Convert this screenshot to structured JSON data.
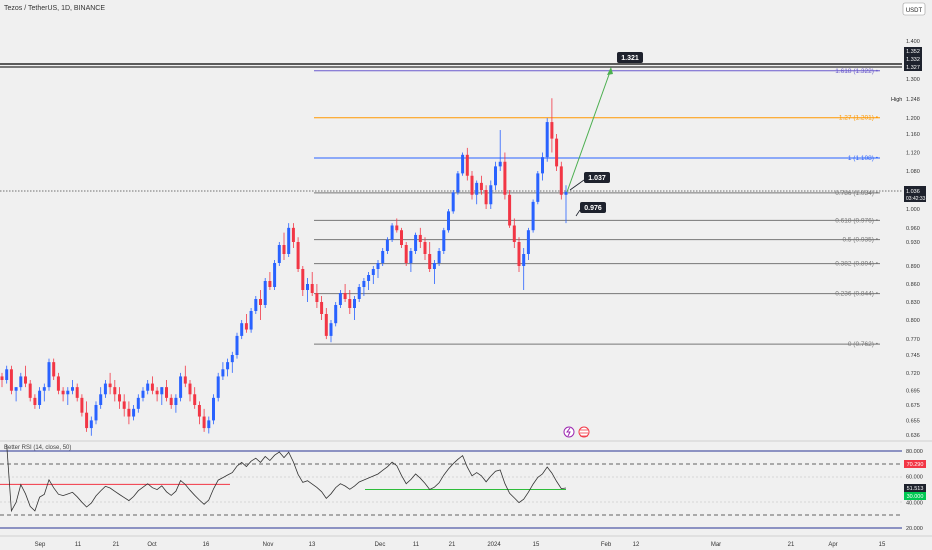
{
  "header": {
    "title": "Tezos / TetherUS, 1D, BINANCE",
    "currency": "USDT"
  },
  "colors": {
    "up": "#2962ff",
    "down": "#f23645",
    "fib": "#777777",
    "fib1": "#2962ff",
    "fib127": "#ff9800",
    "fib1618": "#6a5acd",
    "arrow": "#4caf50",
    "rsi": "#333333",
    "rsi_ob": "#f23645",
    "rsi_os": "#2ebd3a",
    "label_bg": "#1e222d"
  },
  "price_axis": {
    "ticks": [
      "1.400",
      "1.300",
      "1.248",
      "1.200",
      "1.160",
      "1.120",
      "1.080",
      "1.000",
      "0.960",
      "0.930",
      "0.890",
      "0.860",
      "0.830",
      "0.800",
      "0.770",
      "0.745",
      "0.720",
      "0.695",
      "0.675",
      "0.655",
      "0.636"
    ],
    "last_price": "1.036",
    "countdown": "03:42:33",
    "boxes": [
      "1.352",
      "1.332",
      "1.327"
    ],
    "high_label": "High"
  },
  "fib_levels": [
    {
      "label": "1.618 (1.322)",
      "price": 1.322,
      "kind": "fib1618"
    },
    {
      "label": "1.27 (1.201)",
      "price": 1.201,
      "kind": "fib127"
    },
    {
      "label": "1 (1.108)",
      "price": 1.108,
      "kind": "fib1"
    },
    {
      "label": "0.786 (1.034)",
      "price": 1.034,
      "kind": "fib"
    },
    {
      "label": "0.618 (0.976)",
      "price": 0.976,
      "kind": "fib"
    },
    {
      "label": "0.5 (0.935)",
      "price": 0.935,
      "kind": "fib"
    },
    {
      "label": "0.382 (0.894)",
      "price": 0.894,
      "kind": "fib"
    },
    {
      "label": "0.236 (0.844)",
      "price": 0.844,
      "kind": "fib"
    },
    {
      "label": "0 (0.762)",
      "price": 0.762,
      "kind": "fib"
    }
  ],
  "callouts": [
    {
      "text": "1.321"
    },
    {
      "text": "1.037"
    },
    {
      "text": "0.976"
    }
  ],
  "rsi": {
    "title": "Better RSI (14, close, 50)",
    "ticks": [
      "80.000",
      "60.000",
      "40.000",
      "20.000"
    ],
    "value_box": "70.290",
    "value2": "51.513",
    "value3": "30.000"
  },
  "x_axis": [
    "Sep",
    "11",
    "21",
    "Oct",
    "16",
    "Nov",
    "13",
    "Dec",
    "11",
    "21",
    "2024",
    "15",
    "Feb",
    "12",
    "Mar",
    "21",
    "Apr",
    "15"
  ],
  "chart_data": {
    "type": "candlestick",
    "title": "Tezos / TetherUS, 1D, BINANCE",
    "ylabel": "USDT",
    "ylim": [
      0.63,
      1.4
    ],
    "fib_retracement": {
      "from_low": 0.762,
      "to_high": 1.108
    },
    "target_price": 1.321,
    "candles_approx": [
      [
        0.715,
        0.72,
        0.7,
        0.71
      ],
      [
        0.71,
        0.73,
        0.705,
        0.725
      ],
      [
        0.725,
        0.73,
        0.69,
        0.695
      ],
      [
        0.695,
        0.7,
        0.68,
        0.7
      ],
      [
        0.7,
        0.72,
        0.695,
        0.715
      ],
      [
        0.715,
        0.73,
        0.7,
        0.705
      ],
      [
        0.705,
        0.71,
        0.68,
        0.685
      ],
      [
        0.685,
        0.69,
        0.67,
        0.675
      ],
      [
        0.675,
        0.7,
        0.67,
        0.695
      ],
      [
        0.695,
        0.705,
        0.68,
        0.7
      ],
      [
        0.7,
        0.74,
        0.695,
        0.735
      ],
      [
        0.735,
        0.74,
        0.71,
        0.715
      ],
      [
        0.715,
        0.72,
        0.69,
        0.695
      ],
      [
        0.695,
        0.7,
        0.68,
        0.69
      ],
      [
        0.69,
        0.7,
        0.675,
        0.695
      ],
      [
        0.695,
        0.71,
        0.69,
        0.7
      ],
      [
        0.7,
        0.705,
        0.68,
        0.685
      ],
      [
        0.685,
        0.69,
        0.66,
        0.665
      ],
      [
        0.665,
        0.68,
        0.64,
        0.645
      ],
      [
        0.645,
        0.66,
        0.635,
        0.655
      ],
      [
        0.655,
        0.68,
        0.65,
        0.675
      ],
      [
        0.675,
        0.7,
        0.67,
        0.69
      ],
      [
        0.69,
        0.71,
        0.685,
        0.705
      ],
      [
        0.705,
        0.72,
        0.69,
        0.7
      ],
      [
        0.7,
        0.71,
        0.68,
        0.69
      ],
      [
        0.69,
        0.7,
        0.67,
        0.68
      ],
      [
        0.68,
        0.69,
        0.66,
        0.67
      ],
      [
        0.67,
        0.68,
        0.65,
        0.66
      ],
      [
        0.66,
        0.675,
        0.655,
        0.67
      ],
      [
        0.67,
        0.69,
        0.665,
        0.685
      ],
      [
        0.685,
        0.7,
        0.68,
        0.695
      ],
      [
        0.695,
        0.71,
        0.69,
        0.705
      ],
      [
        0.705,
        0.715,
        0.69,
        0.695
      ],
      [
        0.695,
        0.7,
        0.68,
        0.69
      ],
      [
        0.69,
        0.7,
        0.675,
        0.7
      ],
      [
        0.7,
        0.71,
        0.68,
        0.685
      ],
      [
        0.685,
        0.69,
        0.67,
        0.675
      ],
      [
        0.675,
        0.69,
        0.665,
        0.685
      ],
      [
        0.685,
        0.72,
        0.68,
        0.715
      ],
      [
        0.715,
        0.73,
        0.7,
        0.705
      ],
      [
        0.705,
        0.71,
        0.68,
        0.69
      ],
      [
        0.69,
        0.7,
        0.67,
        0.675
      ],
      [
        0.675,
        0.68,
        0.65,
        0.66
      ],
      [
        0.66,
        0.67,
        0.64,
        0.645
      ],
      [
        0.645,
        0.66,
        0.638,
        0.655
      ],
      [
        0.655,
        0.69,
        0.65,
        0.685
      ],
      [
        0.685,
        0.72,
        0.68,
        0.715
      ],
      [
        0.715,
        0.735,
        0.71,
        0.725
      ],
      [
        0.725,
        0.74,
        0.715,
        0.735
      ],
      [
        0.735,
        0.75,
        0.72,
        0.745
      ],
      [
        0.745,
        0.78,
        0.74,
        0.775
      ],
      [
        0.775,
        0.8,
        0.77,
        0.795
      ],
      [
        0.795,
        0.81,
        0.78,
        0.785
      ],
      [
        0.785,
        0.82,
        0.78,
        0.815
      ],
      [
        0.815,
        0.84,
        0.81,
        0.835
      ],
      [
        0.835,
        0.85,
        0.8,
        0.825
      ],
      [
        0.825,
        0.87,
        0.82,
        0.865
      ],
      [
        0.865,
        0.88,
        0.85,
        0.855
      ],
      [
        0.855,
        0.9,
        0.85,
        0.895
      ],
      [
        0.895,
        0.93,
        0.89,
        0.925
      ],
      [
        0.925,
        0.95,
        0.9,
        0.91
      ],
      [
        0.91,
        0.97,
        0.905,
        0.96
      ],
      [
        0.96,
        0.97,
        0.92,
        0.93
      ],
      [
        0.93,
        0.94,
        0.88,
        0.885
      ],
      [
        0.885,
        0.89,
        0.84,
        0.85
      ],
      [
        0.85,
        0.87,
        0.83,
        0.86
      ],
      [
        0.86,
        0.88,
        0.84,
        0.845
      ],
      [
        0.845,
        0.86,
        0.82,
        0.83
      ],
      [
        0.83,
        0.84,
        0.8,
        0.81
      ],
      [
        0.81,
        0.82,
        0.77,
        0.775
      ],
      [
        0.775,
        0.8,
        0.765,
        0.795
      ],
      [
        0.795,
        0.83,
        0.79,
        0.825
      ],
      [
        0.825,
        0.85,
        0.82,
        0.845
      ],
      [
        0.845,
        0.86,
        0.83,
        0.835
      ],
      [
        0.835,
        0.85,
        0.81,
        0.82
      ],
      [
        0.82,
        0.84,
        0.8,
        0.835
      ],
      [
        0.835,
        0.86,
        0.83,
        0.855
      ],
      [
        0.855,
        0.87,
        0.84,
        0.865
      ],
      [
        0.865,
        0.88,
        0.85,
        0.875
      ],
      [
        0.875,
        0.89,
        0.86,
        0.885
      ],
      [
        0.885,
        0.9,
        0.87,
        0.895
      ],
      [
        0.895,
        0.92,
        0.89,
        0.915
      ],
      [
        0.915,
        0.94,
        0.91,
        0.935
      ],
      [
        0.935,
        0.97,
        0.93,
        0.965
      ],
      [
        0.965,
        0.98,
        0.95,
        0.955
      ],
      [
        0.955,
        0.96,
        0.92,
        0.925
      ],
      [
        0.925,
        0.93,
        0.89,
        0.895
      ],
      [
        0.895,
        0.92,
        0.88,
        0.915
      ],
      [
        0.915,
        0.95,
        0.91,
        0.945
      ],
      [
        0.945,
        0.96,
        0.92,
        0.93
      ],
      [
        0.93,
        0.94,
        0.9,
        0.91
      ],
      [
        0.91,
        0.93,
        0.88,
        0.885
      ],
      [
        0.885,
        0.9,
        0.86,
        0.895
      ],
      [
        0.895,
        0.92,
        0.89,
        0.915
      ],
      [
        0.915,
        0.96,
        0.91,
        0.955
      ],
      [
        0.955,
        1.0,
        0.95,
        0.995
      ],
      [
        0.995,
        1.04,
        0.99,
        1.035
      ],
      [
        1.035,
        1.08,
        1.03,
        1.075
      ],
      [
        1.075,
        1.12,
        1.07,
        1.115
      ],
      [
        1.115,
        1.13,
        1.06,
        1.07
      ],
      [
        1.07,
        1.08,
        1.02,
        1.03
      ],
      [
        1.03,
        1.06,
        1.01,
        1.055
      ],
      [
        1.055,
        1.07,
        1.03,
        1.04
      ],
      [
        1.04,
        1.05,
        1.0,
        1.01
      ],
      [
        1.01,
        1.06,
        1.0,
        1.05
      ],
      [
        1.05,
        1.1,
        1.04,
        1.09
      ],
      [
        1.09,
        1.17,
        1.08,
        1.1
      ],
      [
        1.1,
        1.12,
        1.02,
        1.03
      ],
      [
        1.03,
        1.04,
        0.96,
        0.965
      ],
      [
        0.965,
        0.98,
        0.92,
        0.93
      ],
      [
        0.93,
        0.94,
        0.88,
        0.89
      ],
      [
        0.89,
        0.92,
        0.85,
        0.91
      ],
      [
        0.91,
        0.96,
        0.9,
        0.955
      ],
      [
        0.955,
        1.02,
        0.95,
        1.015
      ],
      [
        1.015,
        1.08,
        1.01,
        1.075
      ],
      [
        1.075,
        1.12,
        1.06,
        1.11
      ],
      [
        1.11,
        1.2,
        1.1,
        1.19
      ],
      [
        1.19,
        1.25,
        1.12,
        1.15
      ],
      [
        1.15,
        1.16,
        1.08,
        1.09
      ],
      [
        1.09,
        1.1,
        1.02,
        1.03
      ],
      [
        1.03,
        1.05,
        0.97,
        1.036
      ]
    ]
  }
}
